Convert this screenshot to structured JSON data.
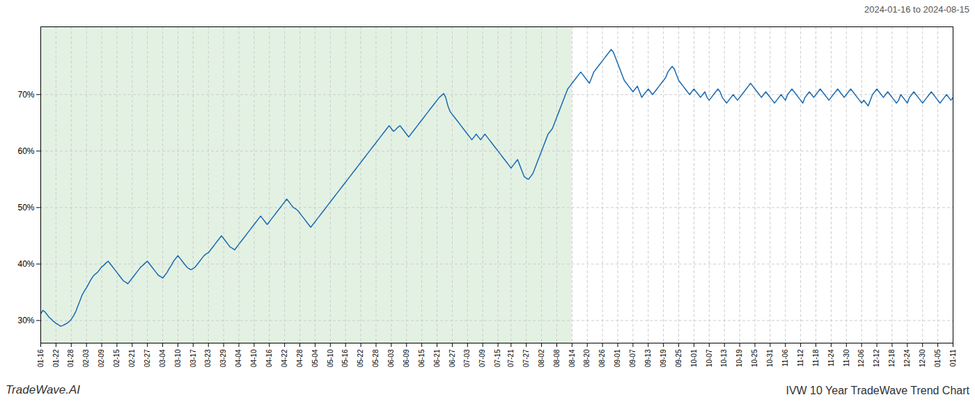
{
  "chart_data": {
    "type": "line",
    "title": "IVW 10 Year TradeWave Trend Chart",
    "subtitle": "2024-01-16 to 2024-08-15",
    "annotations": [
      "TradeWave.AI"
    ],
    "color": "#1a6ab0",
    "grid": true,
    "ylim": [
      26,
      82
    ],
    "yticks": [
      {
        "value": 30,
        "label": "30%"
      },
      {
        "value": 40,
        "label": "40%"
      },
      {
        "value": 50,
        "label": "50%"
      },
      {
        "value": 60,
        "label": "60%"
      },
      {
        "value": 70,
        "label": "70%"
      }
    ],
    "shade": {
      "start": "01-16",
      "end": "08-14",
      "color": "#d4ead4"
    },
    "categories": [
      "01-16",
      null,
      null,
      null,
      null,
      null,
      null,
      "01-22",
      null,
      null,
      null,
      null,
      null,
      null,
      "01-28",
      null,
      null,
      null,
      null,
      null,
      null,
      "02-03",
      null,
      null,
      null,
      null,
      null,
      null,
      "02-09",
      null,
      null,
      null,
      null,
      null,
      null,
      "02-15",
      null,
      null,
      null,
      null,
      null,
      null,
      "02-21",
      null,
      null,
      null,
      null,
      null,
      null,
      "02-27",
      null,
      null,
      null,
      null,
      null,
      null,
      "03-04",
      null,
      null,
      null,
      null,
      null,
      null,
      "03-10",
      null,
      null,
      null,
      null,
      null,
      null,
      "03-17",
      null,
      null,
      null,
      null,
      null,
      null,
      "03-23",
      null,
      null,
      null,
      null,
      null,
      null,
      "03-29",
      null,
      null,
      null,
      null,
      null,
      null,
      "04-04",
      null,
      null,
      null,
      null,
      null,
      null,
      "04-10",
      null,
      null,
      null,
      null,
      null,
      null,
      "04-16",
      null,
      null,
      null,
      null,
      null,
      null,
      "04-22",
      null,
      null,
      null,
      null,
      null,
      null,
      "04-28",
      null,
      null,
      null,
      null,
      null,
      null,
      "05-04",
      null,
      null,
      null,
      null,
      null,
      null,
      "05-10",
      null,
      null,
      null,
      null,
      null,
      null,
      "05-16",
      null,
      null,
      null,
      null,
      null,
      null,
      "05-22",
      null,
      null,
      null,
      null,
      null,
      null,
      "05-28",
      null,
      null,
      null,
      null,
      null,
      null,
      "06-03",
      null,
      null,
      null,
      null,
      null,
      null,
      "06-09",
      null,
      null,
      null,
      null,
      null,
      null,
      "06-15",
      null,
      null,
      null,
      null,
      null,
      null,
      "06-21",
      null,
      null,
      null,
      null,
      null,
      null,
      "06-27",
      null,
      null,
      null,
      null,
      null,
      null,
      "07-03",
      null,
      null,
      null,
      null,
      null,
      null,
      "07-09",
      null,
      null,
      null,
      null,
      null,
      null,
      "07-15",
      null,
      null,
      null,
      null,
      null,
      "07-21",
      null,
      null,
      null,
      null,
      null,
      null,
      "07-27",
      null,
      null,
      null,
      null,
      null,
      null,
      "08-02",
      null,
      null,
      null,
      null,
      null,
      null,
      "08-08",
      null,
      null,
      null,
      null,
      null,
      null,
      "08-14",
      null,
      null,
      null,
      null,
      null,
      null,
      "08-20",
      null,
      null,
      null,
      null,
      null,
      null,
      "08-26",
      null,
      null,
      null,
      null,
      null,
      null,
      "09-01",
      null,
      null,
      null,
      null,
      null,
      null,
      "09-07",
      null,
      null,
      null,
      null,
      null,
      null,
      "09-13",
      null,
      null,
      null,
      null,
      null,
      null,
      "09-19",
      null,
      null,
      null,
      null,
      null,
      null,
      "09-25",
      null,
      null,
      null,
      null,
      null,
      null,
      "10-01",
      null,
      null,
      null,
      null,
      null,
      null,
      "10-07",
      null,
      null,
      null,
      null,
      null,
      null,
      "10-13",
      null,
      null,
      null,
      null,
      null,
      null,
      "10-19",
      null,
      null,
      null,
      null,
      null,
      null,
      "10-25",
      null,
      null,
      null,
      null,
      null,
      null,
      "10-31",
      null,
      null,
      null,
      null,
      null,
      null,
      "11-06",
      null,
      null,
      null,
      null,
      null,
      null,
      "11-12",
      null,
      null,
      null,
      null,
      null,
      null,
      "11-18",
      null,
      null,
      null,
      null,
      null,
      null,
      "11-24",
      null,
      null,
      null,
      null,
      null,
      null,
      "11-30",
      null,
      null,
      null,
      null,
      null,
      null,
      "12-06",
      null,
      null,
      null,
      null,
      null,
      null,
      "12-12",
      null,
      null,
      null,
      null,
      null,
      null,
      "12-18",
      null,
      null,
      null,
      null,
      null,
      null,
      "12-24",
      null,
      null,
      null,
      null,
      null,
      null,
      "12-30",
      null,
      null,
      null,
      null,
      null,
      null,
      "01-05",
      null,
      null,
      null,
      null,
      null,
      null,
      "01-11"
    ],
    "values": [
      31.2,
      31.8,
      31.5,
      31.0,
      30.5,
      30.2,
      29.8,
      29.5,
      29.3,
      29.0,
      29.1,
      29.3,
      29.5,
      29.8,
      30.2,
      30.8,
      31.5,
      32.5,
      33.5,
      34.5,
      35.2,
      35.8,
      36.5,
      37.2,
      37.8,
      38.2,
      38.5,
      39.0,
      39.5,
      39.8,
      40.2,
      40.5,
      40.0,
      39.5,
      39.0,
      38.5,
      38.0,
      37.5,
      37.0,
      36.8,
      36.5,
      37.0,
      37.5,
      38.0,
      38.5,
      39.0,
      39.5,
      39.8,
      40.2,
      40.5,
      40.0,
      39.5,
      39.0,
      38.5,
      38.0,
      37.8,
      37.5,
      38.0,
      38.5,
      39.2,
      39.8,
      40.5,
      41.0,
      41.5,
      41.0,
      40.5,
      40.0,
      39.5,
      39.2,
      39.0,
      39.2,
      39.5,
      40.0,
      40.5,
      41.0,
      41.5,
      41.8,
      42.0,
      42.5,
      43.0,
      43.5,
      44.0,
      44.5,
      45.0,
      44.5,
      44.0,
      43.5,
      43.0,
      42.8,
      42.5,
      43.0,
      43.5,
      44.0,
      44.5,
      45.0,
      45.5,
      46.0,
      46.5,
      47.0,
      47.5,
      48.0,
      48.5,
      48.0,
      47.5,
      47.0,
      47.5,
      48.0,
      48.5,
      49.0,
      49.5,
      50.0,
      50.5,
      51.0,
      51.5,
      51.0,
      50.5,
      50.0,
      49.8,
      49.5,
      49.0,
      48.5,
      48.0,
      47.5,
      47.0,
      46.5,
      47.0,
      47.5,
      48.0,
      48.5,
      49.0,
      49.5,
      50.0,
      50.5,
      51.0,
      51.5,
      52.0,
      52.5,
      53.0,
      53.5,
      54.0,
      54.5,
      55.0,
      55.5,
      56.0,
      56.5,
      57.0,
      57.5,
      58.0,
      58.5,
      59.0,
      59.5,
      60.0,
      60.5,
      61.0,
      61.5,
      62.0,
      62.5,
      63.0,
      63.5,
      64.0,
      64.5,
      64.0,
      63.5,
      63.8,
      64.2,
      64.5,
      64.0,
      63.5,
      63.0,
      62.5,
      63.0,
      63.5,
      64.0,
      64.5,
      65.0,
      65.5,
      66.0,
      66.5,
      67.0,
      67.5,
      68.0,
      68.5,
      69.0,
      69.5,
      69.8,
      70.2,
      69.5,
      68.0,
      67.0,
      66.5,
      66.0,
      65.5,
      65.0,
      64.5,
      64.0,
      63.5,
      63.0,
      62.5,
      62.0,
      62.5,
      63.0,
      62.5,
      62.0,
      62.5,
      63.0,
      62.5,
      62.0,
      61.5,
      61.0,
      60.5,
      60.0,
      59.5,
      59.0,
      58.5,
      58.0,
      57.5,
      57.0,
      57.5,
      58.0,
      58.5,
      57.5,
      56.5,
      55.5,
      55.2,
      55.0,
      55.5,
      56.0,
      57.0,
      58.0,
      59.0,
      60.0,
      61.0,
      62.0,
      63.0,
      63.5,
      64.0,
      65.0,
      66.0,
      67.0,
      68.0,
      69.0,
      70.0,
      71.0,
      71.5,
      72.0,
      72.5,
      73.0,
      73.5,
      74.0,
      73.5,
      73.0,
      72.5,
      72.0,
      73.0,
      74.0,
      74.5,
      75.0,
      75.5,
      76.0,
      76.5,
      77.0,
      77.5,
      78.0,
      77.5,
      76.5,
      75.5,
      74.5,
      73.5,
      72.5,
      72.0,
      71.5,
      71.0,
      70.5,
      71.0,
      71.5,
      70.5,
      69.5,
      70.0,
      70.5,
      71.0,
      70.5,
      70.0,
      70.5,
      71.0,
      71.5,
      72.0,
      72.5,
      73.0,
      74.0,
      74.5,
      75.0,
      74.5,
      73.5,
      72.5,
      72.0,
      71.5,
      71.0,
      70.5,
      70.0,
      70.5,
      71.0,
      70.5,
      70.0,
      69.5,
      70.0,
      70.5,
      69.5,
      69.0,
      69.5,
      70.0,
      70.5,
      71.0,
      70.5,
      69.5,
      69.0,
      68.5,
      69.0,
      69.5,
      70.0,
      69.5,
      69.0,
      69.5,
      70.0,
      70.5,
      71.0,
      71.5,
      72.0,
      71.5,
      71.0,
      70.5,
      70.0,
      69.5,
      70.0,
      70.5,
      70.0,
      69.5,
      69.0,
      68.5,
      69.0,
      69.5,
      70.0,
      69.5,
      69.0,
      70.0,
      70.5,
      71.0,
      70.5,
      70.0,
      69.5,
      69.0,
      68.5,
      69.5,
      70.0,
      70.5,
      70.0,
      69.5,
      70.0,
      70.5,
      71.0,
      70.5,
      70.0,
      69.5,
      69.0,
      69.5,
      70.0,
      70.5,
      71.0,
      70.5,
      70.0,
      69.5,
      70.0,
      70.5,
      71.0,
      70.5,
      70.0,
      69.5,
      69.0,
      68.5,
      69.0,
      68.5,
      68.0,
      69.0,
      70.0,
      70.5,
      71.0,
      70.5,
      70.0,
      69.5,
      70.0,
      70.5,
      70.0,
      69.5,
      69.0,
      68.5,
      69.0,
      70.0,
      69.5,
      69.0,
      68.5,
      69.5,
      70.0,
      70.5,
      70.0,
      69.5,
      69.0,
      68.5,
      69.0,
      69.5,
      70.0,
      70.5,
      70.0,
      69.5,
      69.0,
      68.5,
      69.0,
      69.5,
      70.0,
      69.5,
      69.0,
      69.5
    ]
  }
}
